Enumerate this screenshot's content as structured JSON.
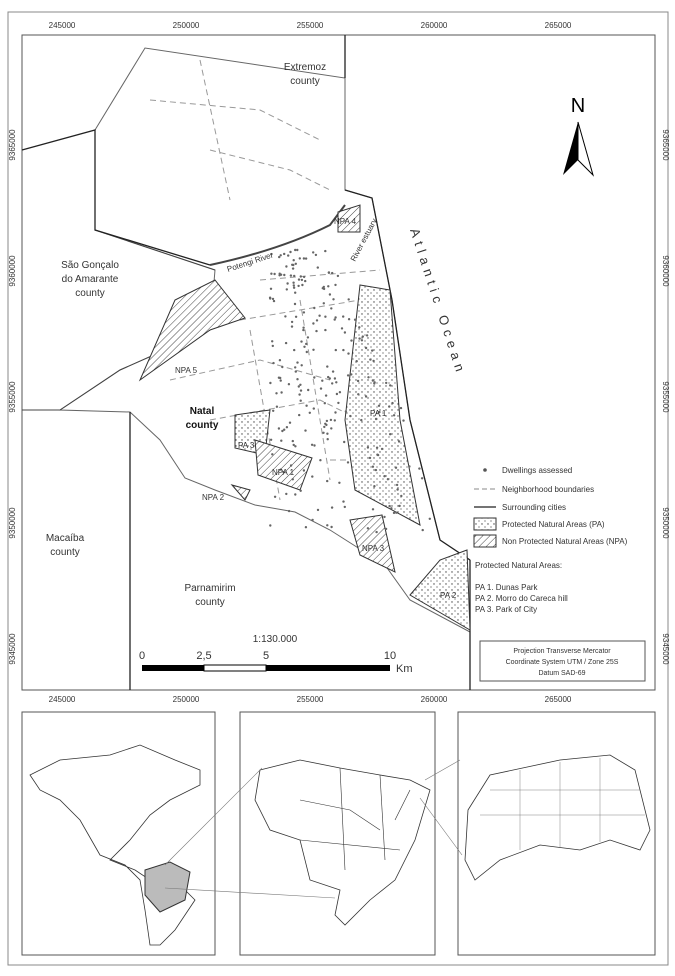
{
  "map": {
    "x_labels": [
      245000,
      250000,
      255000,
      260000,
      265000
    ],
    "y_labels": [
      9365000,
      9360000,
      9355000,
      9350000,
      9345000
    ],
    "places": {
      "extremoz": [
        "Extremoz",
        "county"
      ],
      "sao_goncalo": [
        "São Gonçalo",
        "do Amarante",
        "county"
      ],
      "macaiba": [
        "Macaíba",
        "county"
      ],
      "parnamirim": [
        "Parnamirim",
        "county"
      ],
      "natal": [
        "Natal",
        "county"
      ],
      "ocean": "Atlantic Ocean",
      "river": "Potengi River",
      "estuary": "River estuary"
    },
    "areas": [
      "NPA 1",
      "NPA 2",
      "NPA 3",
      "NPA 4",
      "NPA 5",
      "PA 1",
      "PA 2",
      "PA 3"
    ],
    "north": "N",
    "legend": {
      "items": [
        "Dwellings assessed",
        "Neighborhood boundaries",
        "Surrounding cities",
        "Protected Natural Areas (PA)",
        "Non Protected Natural Areas (NPA)"
      ],
      "pa_title": "Protected Natural Areas:",
      "pa_list": [
        "PA 1. Dunas Park",
        "PA 2. Morro do Careca hill",
        "PA 3. Park of City"
      ]
    },
    "scale": {
      "ratio": "1:130.000",
      "labels": [
        "0",
        "2,5",
        "5",
        "10"
      ],
      "unit": "Km"
    },
    "projection": [
      "Projection Transverse Mercator",
      "Coordinate System UTM / Zone 25S",
      "Datum SAD-69"
    ]
  }
}
